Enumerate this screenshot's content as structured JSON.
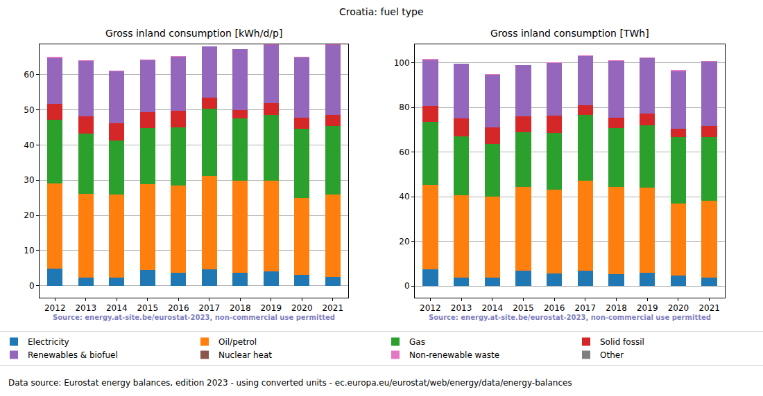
{
  "title": "Croatia: fuel type",
  "footer": "Data source: Eurostat energy balances, edition 2023 - using converted units - ec.europa.eu/eurostat/web/energy/data/energy-balances",
  "chart_data": [
    {
      "type": "bar",
      "title": "Gross inland consumption [kWh/d/p]",
      "source": "Source: energy.at-site.be/eurostat-2023, non-commercial use permitted",
      "categories": [
        "2012",
        "2013",
        "2014",
        "2015",
        "2016",
        "2017",
        "2018",
        "2019",
        "2020",
        "2021"
      ],
      "stacked": true,
      "grid": true,
      "legend": "bottom",
      "ylim": [
        -3.4,
        68.6
      ],
      "yticks": [
        0,
        10,
        20,
        30,
        40,
        50,
        60
      ],
      "series": [
        {
          "name": "Electricity",
          "color": "#1f77b4",
          "values": [
            4.8,
            2.4,
            2.4,
            4.4,
            3.6,
            4.6,
            3.6,
            4.0,
            3.0,
            2.6
          ]
        },
        {
          "name": "Oil/petrol",
          "color": "#ff7f0e",
          "values": [
            24.3,
            23.8,
            23.6,
            24.5,
            24.8,
            26.6,
            26.2,
            25.9,
            21.9,
            23.4
          ]
        },
        {
          "name": "Gas",
          "color": "#2ca02c",
          "values": [
            18.0,
            17.1,
            15.2,
            15.8,
            16.5,
            19.1,
            17.7,
            18.7,
            19.7,
            19.3
          ]
        },
        {
          "name": "Solid fossil",
          "color": "#d62728",
          "values": [
            4.6,
            4.8,
            4.9,
            4.6,
            4.9,
            3.1,
            2.5,
            3.2,
            3.1,
            3.2
          ]
        },
        {
          "name": "Renewables & biofuel",
          "color": "#9467bd",
          "values": [
            13.0,
            15.8,
            14.9,
            14.8,
            15.2,
            14.6,
            17.2,
            16.6,
            17.1,
            19.9
          ]
        },
        {
          "name": "Nuclear heat",
          "color": "#8c564b",
          "values": [
            0,
            0,
            0,
            0,
            0,
            0,
            0,
            0,
            0,
            0
          ]
        },
        {
          "name": "Non-renewable waste",
          "color": "#e377c2",
          "values": [
            0.3,
            0.1,
            0.2,
            0.1,
            0.2,
            0.1,
            0.1,
            0.2,
            0.3,
            0.2
          ]
        },
        {
          "name": "Other",
          "color": "#7f7f7f",
          "values": [
            0,
            0,
            0,
            0,
            0,
            0,
            0,
            0,
            0,
            0
          ]
        }
      ]
    },
    {
      "type": "bar",
      "title": "Gross inland consumption [TWh]",
      "source": "Source: energy.at-site.be/eurostat-2023, non-commercial use permitted",
      "categories": [
        "2012",
        "2013",
        "2014",
        "2015",
        "2016",
        "2017",
        "2018",
        "2019",
        "2020",
        "2021"
      ],
      "stacked": true,
      "grid": true,
      "ylim": [
        -5.2,
        108.3
      ],
      "yticks": [
        0,
        20,
        40,
        60,
        80,
        100
      ],
      "series": [
        {
          "name": "Electricity",
          "color": "#1f77b4",
          "values": [
            7.5,
            3.8,
            3.7,
            6.8,
            5.6,
            7.0,
            5.4,
            6.0,
            4.7,
            3.8
          ]
        },
        {
          "name": "Oil/petrol",
          "color": "#ff7f0e",
          "values": [
            38.0,
            36.8,
            36.3,
            37.7,
            37.6,
            40.2,
            39.1,
            38.2,
            32.3,
            34.4
          ]
        },
        {
          "name": "Gas",
          "color": "#2ca02c",
          "values": [
            28.2,
            26.6,
            23.7,
            24.3,
            25.5,
            29.4,
            26.4,
            27.8,
            29.6,
            28.5
          ]
        },
        {
          "name": "Solid fossil",
          "color": "#d62728",
          "values": [
            7.0,
            7.8,
            7.5,
            7.2,
            7.6,
            4.3,
            4.4,
            5.2,
            4.0,
            4.9
          ]
        },
        {
          "name": "Renewables & biofuel",
          "color": "#9467bd",
          "values": [
            20.5,
            24.5,
            23.5,
            22.9,
            23.6,
            22.1,
            25.6,
            24.8,
            25.5,
            29.1
          ]
        },
        {
          "name": "Nuclear heat",
          "color": "#8c564b",
          "values": [
            0,
            0,
            0,
            0,
            0,
            0,
            0,
            0,
            0,
            0
          ]
        },
        {
          "name": "Non-renewable waste",
          "color": "#e377c2",
          "values": [
            0.5,
            0.1,
            0.2,
            0.1,
            0.2,
            0.2,
            0.2,
            0.3,
            0.6,
            0.3
          ]
        },
        {
          "name": "Other",
          "color": "#7f7f7f",
          "values": [
            0,
            0,
            0,
            0,
            0,
            0,
            0,
            0,
            0,
            0
          ]
        }
      ]
    }
  ]
}
